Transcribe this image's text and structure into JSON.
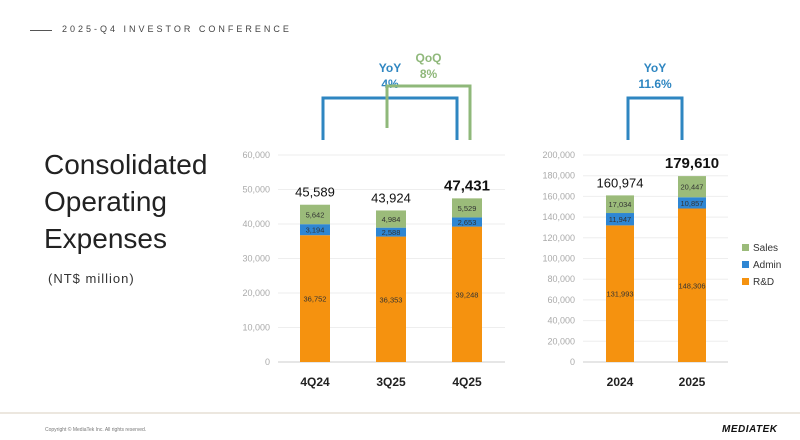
{
  "header": {
    "conference": "2025-Q4 INVESTOR CONFERENCE"
  },
  "title": "Consolidated Operating Expenses",
  "unit": "(NT$ million)",
  "footer": {
    "copyright": "Copyright © MediaTek Inc. All rights reserved.",
    "logo": "MEDIATEK"
  },
  "colors": {
    "sales": "#9bbb7a",
    "admin": "#2e86d3",
    "rd": "#f5920f",
    "yoy": "#2e86c1",
    "qoq": "#8fb87a"
  },
  "chart_data": [
    {
      "type": "bar",
      "stacked": true,
      "categories": [
        "4Q24",
        "3Q25",
        "4Q25"
      ],
      "series": [
        {
          "name": "R&D",
          "values": [
            36752,
            36353,
            39248
          ]
        },
        {
          "name": "Admin",
          "values": [
            3194,
            2588,
            2653
          ]
        },
        {
          "name": "Sales",
          "values": [
            5642,
            4984,
            5529
          ]
        }
      ],
      "totals": [
        "45,589",
        "43,924",
        "47,431"
      ],
      "ylim": [
        0,
        60000
      ],
      "yticks": [
        "0",
        "10,000",
        "20,000",
        "30,000",
        "40,000",
        "50,000",
        "60,000"
      ],
      "annotations": [
        {
          "label": "YoY",
          "value": "4%",
          "from": "4Q24",
          "to": "4Q25"
        },
        {
          "label": "QoQ",
          "value": "8%",
          "from": "3Q25",
          "to": "4Q25"
        }
      ]
    },
    {
      "type": "bar",
      "stacked": true,
      "categories": [
        "2024",
        "2025"
      ],
      "series": [
        {
          "name": "R&D",
          "values": [
            131993,
            148306
          ]
        },
        {
          "name": "Admin",
          "values": [
            11947,
            10857
          ]
        },
        {
          "name": "Sales",
          "values": [
            17034,
            20447
          ]
        }
      ],
      "totals": [
        "160,974",
        "179,610"
      ],
      "ylim": [
        0,
        200000
      ],
      "yticks": [
        "0",
        "20,000",
        "40,000",
        "60,000",
        "80,000",
        "100,000",
        "120,000",
        "140,000",
        "160,000",
        "180,000",
        "200,000"
      ],
      "legend": {
        "position": "right",
        "entries": [
          "Sales",
          "Admin",
          "R&D"
        ]
      },
      "annotations": [
        {
          "label": "YoY",
          "value": "11.6%",
          "from": "2024",
          "to": "2025"
        }
      ]
    }
  ]
}
